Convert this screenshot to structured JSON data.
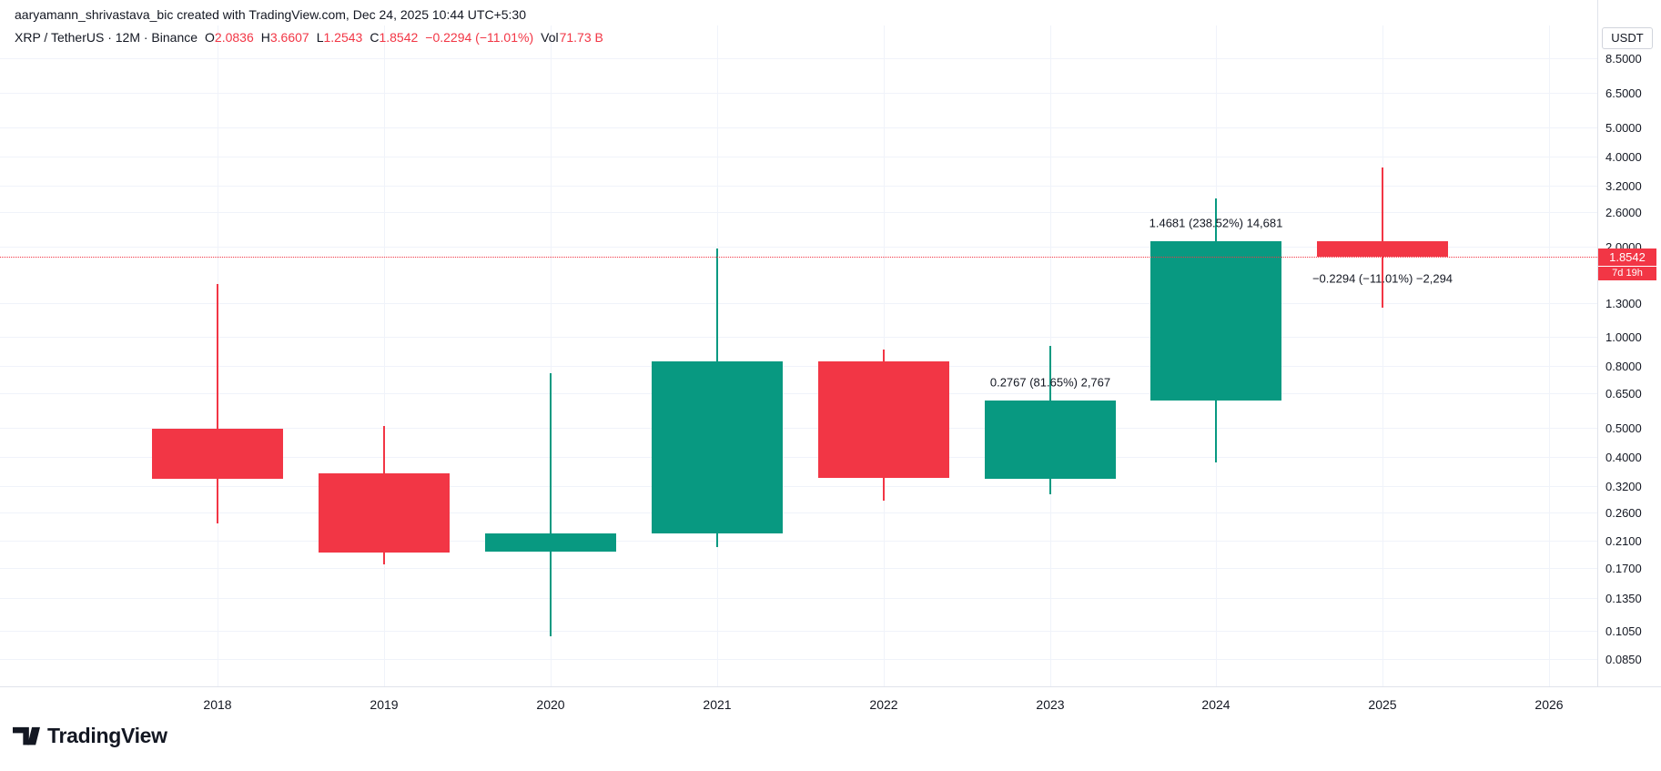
{
  "attribution": "aaryamann_shrivastava_bic created with TradingView.com, Dec 24, 2025 10:44 UTC+5:30",
  "legend": {
    "title": "XRP / TetherUS · 12M · Binance",
    "ohlc": [
      {
        "label": "O",
        "value": "2.0836"
      },
      {
        "label": "H",
        "value": "3.6607"
      },
      {
        "label": "L",
        "value": "1.2543"
      },
      {
        "label": "C",
        "value": "1.8542"
      }
    ],
    "change": "−0.2294 (−11.01%)",
    "vol_label": "Vol",
    "vol_value": "71.73 B"
  },
  "price_axis": {
    "currency": "USDT",
    "ticks": [
      {
        "label": "8.5000",
        "price": 8.5
      },
      {
        "label": "6.5000",
        "price": 6.5
      },
      {
        "label": "5.0000",
        "price": 5.0
      },
      {
        "label": "4.0000",
        "price": 4.0
      },
      {
        "label": "3.2000",
        "price": 3.2
      },
      {
        "label": "2.6000",
        "price": 2.6
      },
      {
        "label": "2.0000",
        "price": 2.0
      },
      {
        "label": "1.3000",
        "price": 1.3
      },
      {
        "label": "1.0000",
        "price": 1.0
      },
      {
        "label": "0.8000",
        "price": 0.8
      },
      {
        "label": "0.6500",
        "price": 0.65
      },
      {
        "label": "0.5000",
        "price": 0.5
      },
      {
        "label": "0.4000",
        "price": 0.4
      },
      {
        "label": "0.3200",
        "price": 0.32
      },
      {
        "label": "0.2600",
        "price": 0.26
      },
      {
        "label": "0.2100",
        "price": 0.21
      },
      {
        "label": "0.1700",
        "price": 0.17
      },
      {
        "label": "0.1350",
        "price": 0.135
      },
      {
        "label": "0.1050",
        "price": 0.105
      },
      {
        "label": "0.0850",
        "price": 0.085
      }
    ],
    "badge": {
      "price": "1.8542",
      "countdown": "7d 19h"
    }
  },
  "time_axis": {
    "years": [
      "2018",
      "2019",
      "2020",
      "2021",
      "2022",
      "2023",
      "2024",
      "2025",
      "2026"
    ]
  },
  "chart_data": {
    "type": "candlestick",
    "title": "XRP / TetherUS 12M Binance",
    "scale": "logarithmic",
    "quote_currency": "USDT",
    "current_price": 1.8542,
    "current_change": "−0.2294 (−11.01%)",
    "volume": "71.73 B",
    "colors": {
      "up": "#089981",
      "down": "#f23645"
    },
    "candles": [
      {
        "year": "2018",
        "open": 0.495,
        "high": 1.5,
        "low": 0.24,
        "close": 0.337,
        "direction": "down"
      },
      {
        "year": "2019",
        "open": 0.3528,
        "high": 0.506,
        "low": 0.1748,
        "close": 0.1929,
        "direction": "down"
      },
      {
        "year": "2020",
        "open": 0.1929,
        "high": 0.76,
        "low": 0.1013,
        "close": 0.2213,
        "direction": "up"
      },
      {
        "year": "2021",
        "open": 0.2213,
        "high": 1.966,
        "low": 0.1992,
        "close": 0.8298,
        "direction": "up"
      },
      {
        "year": "2022",
        "open": 0.8298,
        "high": 0.9114,
        "low": 0.2859,
        "close": 0.3389,
        "direction": "down"
      },
      {
        "year": "2023",
        "open": 0.3389,
        "high": 0.938,
        "low": 0.3005,
        "close": 0.6157,
        "direction": "up",
        "label": "0.2767 (81.65%) 2,767",
        "label_pos": "above"
      },
      {
        "year": "2024",
        "open": 0.6157,
        "high": 2.9,
        "low": 0.3823,
        "close": 2.0838,
        "direction": "up",
        "label": "1.4681 (238.52%) 14,681",
        "label_pos": "above"
      },
      {
        "year": "2025",
        "open": 2.0836,
        "high": 3.6607,
        "low": 1.2543,
        "close": 1.8542,
        "direction": "down",
        "label": "−0.2294 (−11.01%) −2,294",
        "label_pos": "below"
      }
    ]
  },
  "logo": {
    "text": "TradingView"
  }
}
